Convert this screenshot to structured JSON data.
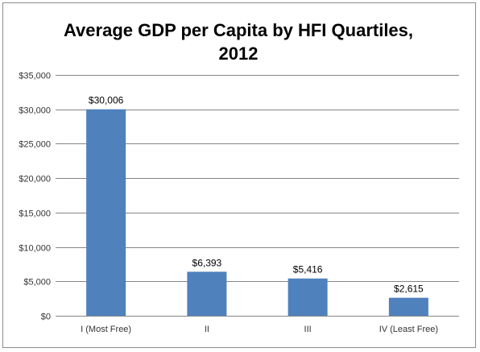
{
  "chart_data": {
    "type": "bar",
    "title_line1": "Average GDP per Capita by HFI Quartiles,",
    "title_line2": "2012",
    "categories": [
      "I (Most Free)",
      "II",
      "III",
      "IV (Least Free)"
    ],
    "values": [
      30006,
      6393,
      5416,
      2615
    ],
    "data_labels": [
      "$30,006",
      "$6,393",
      "$5,416",
      "$2,615"
    ],
    "y_ticks": [
      "$0",
      "$5,000",
      "$10,000",
      "$15,000",
      "$20,000",
      "$25,000",
      "$30,000",
      "$35,000"
    ],
    "ylim": [
      0,
      35000
    ],
    "xlabel": "",
    "ylabel": "",
    "grid": true,
    "bar_color": "#4f81bd",
    "grid_color": "#868686"
  }
}
